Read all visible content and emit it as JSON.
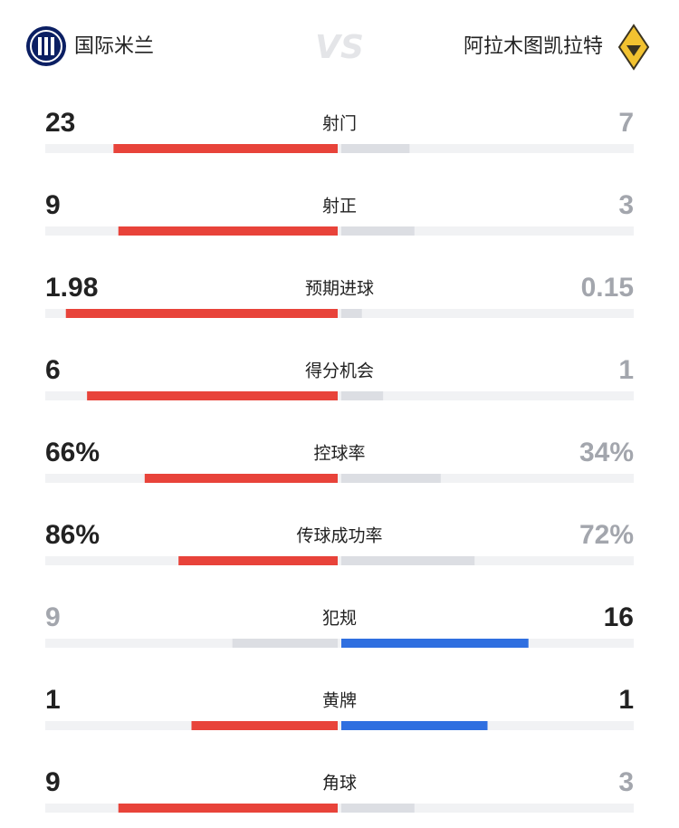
{
  "header": {
    "home_team": "国际米兰",
    "vs": "VS",
    "away_team": "阿拉木图凯拉特"
  },
  "colors": {
    "home": "#e8433a",
    "away": "#2f6fe0",
    "behind": "#dcdee3",
    "track": "#f1f2f4",
    "lead_text": "#222222",
    "behind_text": "#a3a6ad"
  },
  "stats": [
    {
      "name": "射门",
      "home": 23,
      "away": 7
    },
    {
      "name": "射正",
      "home": 9,
      "away": 3
    },
    {
      "name": "预期进球",
      "home": 1.98,
      "away": 0.15
    },
    {
      "name": "得分机会",
      "home": 6,
      "away": 1
    },
    {
      "name": "控球率",
      "home": {
        "value": 66,
        "label": "66%"
      },
      "away": {
        "value": 34,
        "label": "34%"
      }
    },
    {
      "name": "传球成功率",
      "home": {
        "value": 86,
        "label": "86%"
      },
      "away": {
        "value": 72,
        "label": "72%"
      }
    },
    {
      "name": "犯规",
      "home": 9,
      "away": 16
    },
    {
      "name": "黄牌",
      "home": 1,
      "away": 1
    },
    {
      "name": "角球",
      "home": 9,
      "away": 3
    }
  ]
}
